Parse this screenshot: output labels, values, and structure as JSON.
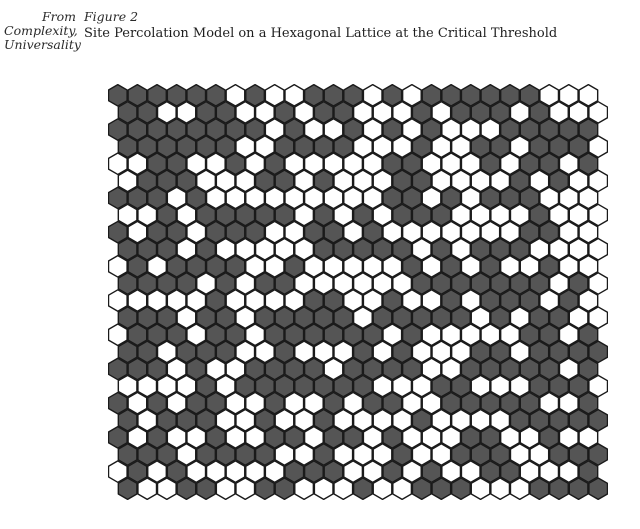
{
  "margin_note": {
    "lines": [
      "From",
      "Complexity,",
      "Universality"
    ]
  },
  "figure": {
    "label": "Figure 2",
    "caption": "Site Percolation Model on a Hexagonal Lattice at the Critical Threshold"
  },
  "lattice": {
    "type": "hexagonal site percolation",
    "rows": 24,
    "columns": 25,
    "occupation_probability": 0.5,
    "colors": {
      "occupied": "#555555",
      "empty": "#ffffff",
      "outline": "#1a1a1a"
    }
  }
}
